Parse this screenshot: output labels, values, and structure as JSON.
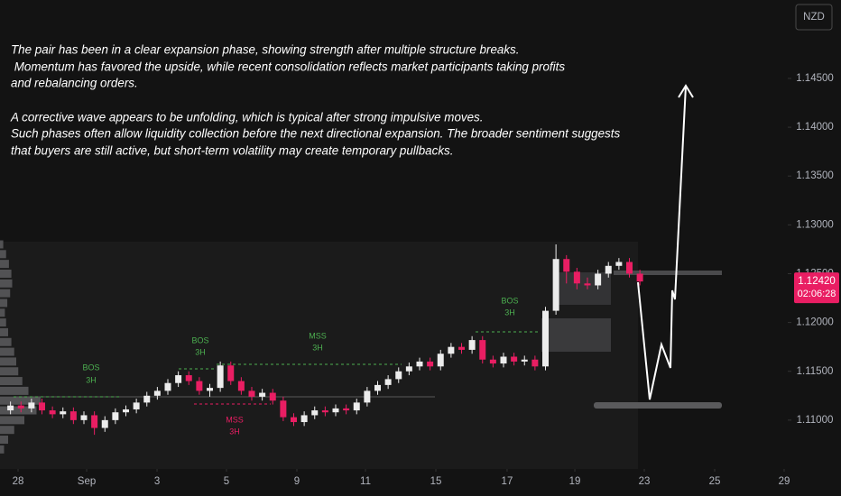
{
  "chart_data": {
    "type": "candlestick",
    "currency": "NZD",
    "annotation_lines": [
      "The pair has been in a clear expansion phase, showing strength after multiple structure breaks.",
      " Momentum has favored the upside, while recent consolidation reflects market participants taking profits",
      "and rebalancing orders.",
      "A corrective wave appears to be unfolding, which is typical after strong impulsive moves.",
      "Such phases often allow liquidity collection before the next directional expansion. The broader sentiment suggests",
      "that buyers are still active, but short-term volatility may create temporary pullbacks."
    ],
    "structure_labels": [
      [
        "BOS",
        "3H"
      ],
      [
        "BOS",
        "3H"
      ],
      [
        "MSS",
        "3H"
      ],
      [
        "MSS",
        "3H"
      ],
      [
        "BOS",
        "3H"
      ]
    ],
    "x": [
      1,
      2,
      3,
      4,
      5,
      6,
      7,
      8,
      9,
      10,
      11,
      12,
      13,
      14,
      15,
      16,
      17,
      18,
      19,
      20,
      21,
      22,
      23,
      24,
      25,
      26,
      27,
      28,
      29,
      30,
      31,
      32,
      33,
      34,
      35,
      36,
      37,
      38,
      39,
      40,
      41,
      42,
      43,
      44,
      45,
      46,
      47,
      48,
      49,
      50,
      51,
      52,
      53,
      54,
      55,
      56,
      57,
      58,
      59,
      60,
      61
    ],
    "open": [
      1.111,
      1.1115,
      1.1112,
      1.1118,
      1.111,
      1.1106,
      1.1109,
      1.11,
      1.1105,
      1.1092,
      1.11,
      1.1108,
      1.1111,
      1.1118,
      1.1125,
      1.113,
      1.1138,
      1.1146,
      1.114,
      1.113,
      1.1133,
      1.1156,
      1.114,
      1.113,
      1.1124,
      1.1128,
      1.112,
      1.1103,
      1.1098,
      1.1105,
      1.111,
      1.1108,
      1.1112,
      1.111,
      1.1118,
      1.113,
      1.1136,
      1.1142,
      1.115,
      1.1155,
      1.116,
      1.1155,
      1.1168,
      1.1175,
      1.1172,
      1.1182,
      1.1162,
      1.1158,
      1.1165,
      1.116,
      1.1162,
      1.1155,
      1.1212,
      1.1265,
      1.1252,
      1.124,
      1.1238,
      1.125,
      1.1258,
      1.1262,
      1.125
    ],
    "high": [
      1.1119,
      1.1119,
      1.1122,
      1.1122,
      1.1114,
      1.1113,
      1.1113,
      1.1109,
      1.1109,
      1.1104,
      1.1112,
      1.1115,
      1.1122,
      1.1129,
      1.1134,
      1.1142,
      1.115,
      1.115,
      1.1144,
      1.1137,
      1.116,
      1.116,
      1.1144,
      1.1134,
      1.1132,
      1.1132,
      1.1124,
      1.1107,
      1.1109,
      1.1114,
      1.1114,
      1.1116,
      1.1116,
      1.1122,
      1.1134,
      1.114,
      1.1146,
      1.1154,
      1.1159,
      1.1164,
      1.1164,
      1.1172,
      1.1179,
      1.1179,
      1.1186,
      1.1186,
      1.1166,
      1.1169,
      1.1169,
      1.1166,
      1.1166,
      1.1216,
      1.128,
      1.1269,
      1.1256,
      1.1246,
      1.1254,
      1.1262,
      1.1266,
      1.1266,
      1.1254
    ],
    "low": [
      1.1106,
      1.1108,
      1.1108,
      1.1106,
      1.1102,
      1.1102,
      1.1096,
      1.1096,
      1.1085,
      1.1088,
      1.1096,
      1.1104,
      1.1107,
      1.1114,
      1.1121,
      1.1126,
      1.1134,
      1.1136,
      1.1126,
      1.1124,
      1.1129,
      1.1136,
      1.1126,
      1.112,
      1.112,
      1.1116,
      1.1099,
      1.1094,
      1.1094,
      1.1101,
      1.1104,
      1.1104,
      1.1106,
      1.1106,
      1.1114,
      1.1126,
      1.1132,
      1.1138,
      1.1146,
      1.1151,
      1.1151,
      1.1151,
      1.1164,
      1.1168,
      1.1168,
      1.1158,
      1.1154,
      1.1154,
      1.1156,
      1.1156,
      1.1151,
      1.1151,
      1.1208,
      1.124,
      1.1234,
      1.1234,
      1.1234,
      1.1246,
      1.1254,
      1.1246,
      1.1238
    ],
    "close": [
      1.1115,
      1.1112,
      1.1118,
      1.111,
      1.1106,
      1.1109,
      1.11,
      1.1105,
      1.1092,
      1.11,
      1.1108,
      1.1111,
      1.1118,
      1.1125,
      1.113,
      1.1138,
      1.1146,
      1.114,
      1.113,
      1.1133,
      1.1156,
      1.114,
      1.113,
      1.1124,
      1.1128,
      1.112,
      1.1103,
      1.1098,
      1.1105,
      1.111,
      1.1108,
      1.1112,
      1.111,
      1.1118,
      1.113,
      1.1136,
      1.1142,
      1.115,
      1.1155,
      1.116,
      1.1155,
      1.1168,
      1.1175,
      1.1172,
      1.1182,
      1.1162,
      1.1158,
      1.1165,
      1.116,
      1.1162,
      1.1155,
      1.1212,
      1.1265,
      1.1252,
      1.124,
      1.1238,
      1.125,
      1.1258,
      1.1262,
      1.125,
      1.1242
    ],
    "up_color": "#ececec",
    "down_color": "#e91e63",
    "xlim": [
      0,
      80
    ],
    "ylim": [
      1.105,
      1.15303
    ],
    "xticks": [
      {
        "value": 1.72,
        "label": "28"
      },
      {
        "value": 8.26,
        "label": "Sep"
      },
      {
        "value": 14.97,
        "label": "3"
      },
      {
        "value": 21.59,
        "label": "5"
      },
      {
        "value": 28.3,
        "label": "9"
      },
      {
        "value": 34.84,
        "label": "11"
      },
      {
        "value": 41.55,
        "label": "15"
      },
      {
        "value": 48.34,
        "label": "17"
      },
      {
        "value": 54.8,
        "label": "19"
      },
      {
        "value": 61.42,
        "label": "23"
      },
      {
        "value": 68.13,
        "label": "25"
      },
      {
        "value": 74.75,
        "label": "29"
      }
    ],
    "yticks": [
      {
        "value": 1.145,
        "label": "1.14500"
      },
      {
        "value": 1.14,
        "label": "1.14000"
      },
      {
        "value": 1.135,
        "label": "1.13500"
      },
      {
        "value": 1.13,
        "label": "1.13000"
      },
      {
        "value": 1.125,
        "label": "1.12500"
      },
      {
        "value": 1.12,
        "label": "1.12000"
      },
      {
        "value": 1.115,
        "label": "1.11500"
      },
      {
        "value": 1.11,
        "label": "1.11000"
      }
    ],
    "last_price": {
      "value": 1.1242,
      "label": "1.12420"
    },
    "countdown": "02:06:28",
    "volume_profile": {
      "prices": [
        1.107,
        1.108,
        1.109,
        1.11,
        1.111,
        1.112,
        1.113,
        1.114,
        1.115,
        1.116,
        1.117,
        1.118,
        1.119,
        1.12,
        1.121,
        1.122,
        1.123,
        1.124,
        1.125,
        1.126,
        1.127,
        1.128
      ],
      "values": [
        10,
        20,
        35,
        60,
        90,
        100,
        70,
        55,
        45,
        40,
        35,
        28,
        20,
        15,
        12,
        18,
        25,
        30,
        28,
        22,
        15,
        8
      ]
    }
  }
}
